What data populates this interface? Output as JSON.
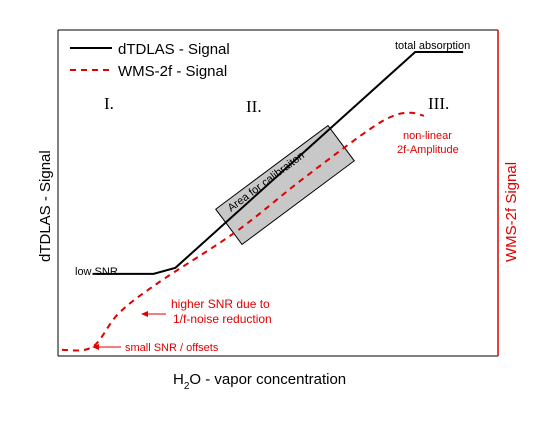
{
  "chart_data": {
    "type": "line",
    "xlabel_prefix": "H",
    "xlabel_sub": "2",
    "xlabel_rest": "O -  vapor concentration",
    "ylabel_left": "dTDLAS - Signal",
    "ylabel_right": "WMS-2f Signal",
    "legend": {
      "placement": "top-left"
    },
    "series": [
      {
        "name": "dTDLAS - Signal",
        "style": "solid",
        "color": "#000000",
        "points": [
          [
            0.07,
            0.27
          ],
          [
            0.21,
            0.27
          ],
          [
            0.26,
            0.29
          ],
          [
            0.81,
            1.0
          ],
          [
            0.92,
            1.0
          ]
        ]
      },
      {
        "name": "WMS-2f - Signal",
        "style": "dashed",
        "color": "#e00000",
        "points": [
          [
            0.0,
            0.02
          ],
          [
            0.07,
            0.03
          ],
          [
            0.13,
            0.14
          ],
          [
            0.22,
            0.24
          ],
          [
            0.4,
            0.41
          ],
          [
            0.55,
            0.58
          ],
          [
            0.7,
            0.74
          ],
          [
            0.76,
            0.79
          ],
          [
            0.8,
            0.8
          ],
          [
            0.83,
            0.79
          ]
        ]
      }
    ],
    "regions": [
      "I.",
      "II.",
      "III."
    ],
    "calibration_label": "Area for calibraiton",
    "annotations": {
      "total_absorption": "total absorption",
      "low_snr": "low SNR",
      "non_linear_1": "non-linear",
      "non_linear_2": "2f-Amplitude",
      "higher_snr_1": "higher SNR due to",
      "higher_snr_2": "1/f-noise reduction",
      "small_snr": "small SNR / offsets"
    },
    "colors": {
      "axis_left": "#000000",
      "axis_right": "#e00000",
      "box_fill": "#c8c8c8"
    }
  }
}
